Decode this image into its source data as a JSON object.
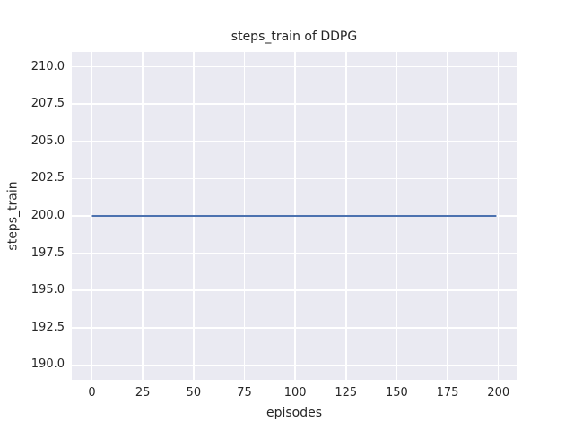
{
  "chart_data": {
    "type": "line",
    "title": "steps_train of DDPG",
    "xlabel": "episodes",
    "ylabel": "steps_train",
    "xlim": [
      -9.95,
      208.95
    ],
    "ylim": [
      189,
      211
    ],
    "xticks": [
      0,
      25,
      50,
      75,
      100,
      125,
      150,
      175,
      200
    ],
    "xtick_labels": [
      "0",
      "25",
      "50",
      "75",
      "100",
      "125",
      "150",
      "175",
      "200"
    ],
    "yticks": [
      190.0,
      192.5,
      195.0,
      197.5,
      200.0,
      202.5,
      205.0,
      207.5,
      210.0
    ],
    "ytick_labels": [
      "190.0",
      "192.5",
      "195.0",
      "197.5",
      "200.0",
      "202.5",
      "205.0",
      "207.5",
      "210.0"
    ],
    "grid": true,
    "legend": false,
    "series": [
      {
        "name": "steps_train",
        "color": "#4c72b0",
        "x": [
          0,
          199
        ],
        "values": [
          200,
          200
        ],
        "note": "constant value 200 for every episode from 0 to 199"
      }
    ],
    "colors": {
      "figure_background": "#ffffff",
      "plot_background": "#eaeaf2",
      "gridline": "#ffffff",
      "text": "#262626"
    }
  }
}
